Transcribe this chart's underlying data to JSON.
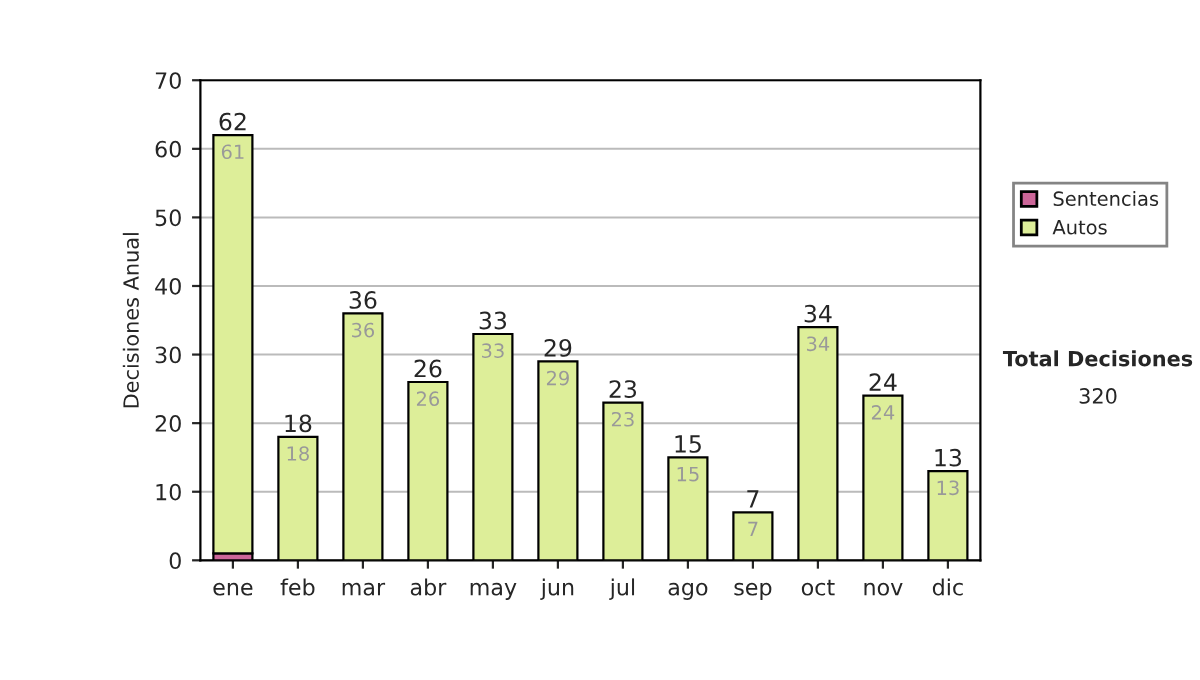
{
  "chart_data": {
    "type": "bar",
    "stacked": true,
    "ylabel": "Decisiones Anual",
    "categories": [
      "ene",
      "feb",
      "mar",
      "abr",
      "may",
      "jun",
      "jul",
      "ago",
      "sep",
      "oct",
      "nov",
      "dic"
    ],
    "series": [
      {
        "name": "Sentencias",
        "color": "#cc6699",
        "values": [
          1,
          0,
          0,
          0,
          0,
          0,
          0,
          0,
          0,
          0,
          0,
          0
        ]
      },
      {
        "name": "Autos",
        "color": "#ddee99",
        "values": [
          61,
          18,
          36,
          26,
          33,
          29,
          23,
          15,
          7,
          34,
          24,
          13
        ],
        "value_labels": [
          "61",
          "18",
          "36",
          "26",
          "33",
          "29",
          "23",
          "15",
          "7",
          "34",
          "24",
          "13"
        ]
      }
    ],
    "totals": [
      "62",
      "18",
      "36",
      "26",
      "33",
      "29",
      "23",
      "15",
      "7",
      "34",
      "24",
      "13"
    ],
    "ylim": [
      0,
      70
    ],
    "yticks": [
      0,
      10,
      20,
      30,
      40,
      50,
      60,
      70
    ],
    "grid": "y",
    "legend": "right",
    "annotations": [
      "Total Decisiones",
      "320"
    ]
  }
}
